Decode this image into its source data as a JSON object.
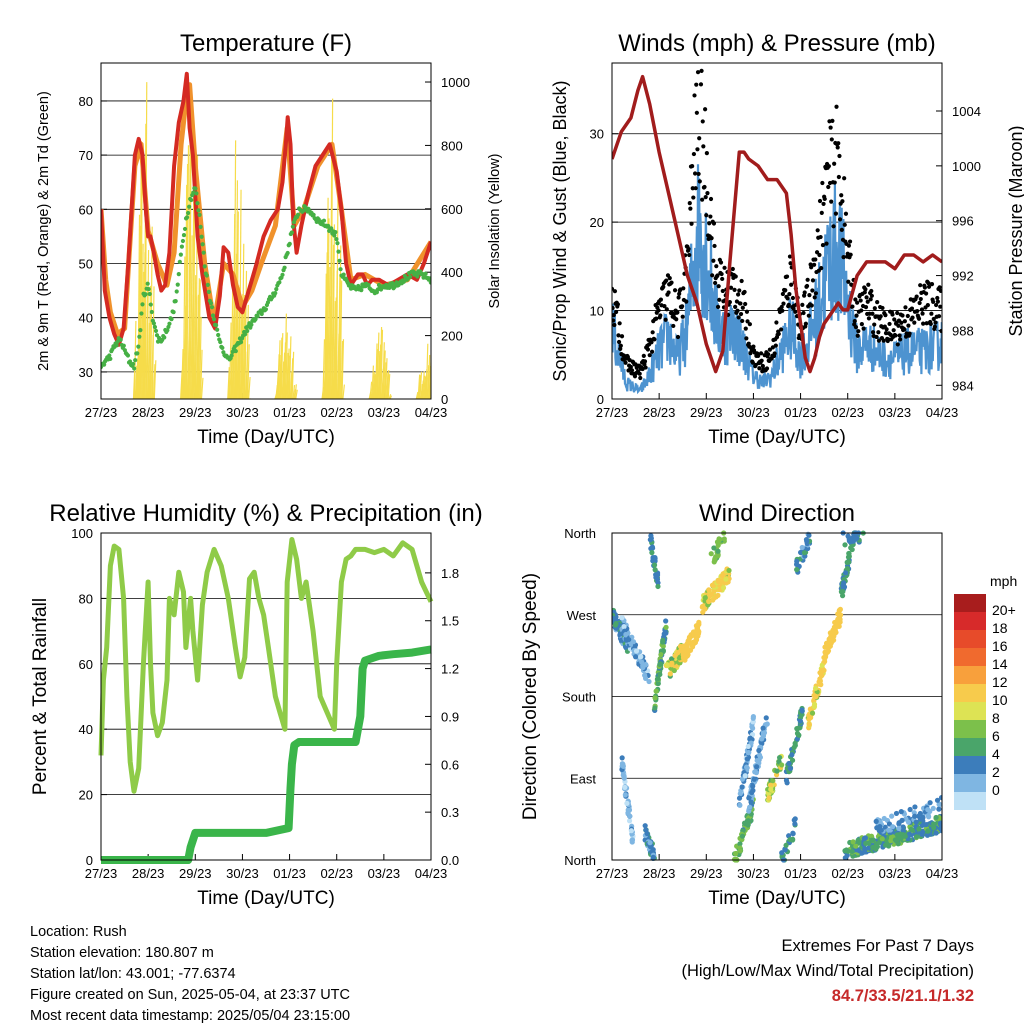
{
  "x_ticks": [
    "27/23",
    "28/23",
    "29/23",
    "30/23",
    "01/23",
    "02/23",
    "03/23",
    "04/23"
  ],
  "x_label": "Time (Day/UTC)",
  "colors": {
    "temp": "#d42a22",
    "temp9": "#f0922c",
    "dew": "#46b045",
    "solar": "#f6dc4a",
    "wind": "#4d93d0",
    "gust": "#000000",
    "pressure": "#a11c1c",
    "rh": "#8fcb48",
    "precip": "#3ab54a",
    "grid": "#000000"
  },
  "chart_data": [
    {
      "type": "line",
      "title": "Temperature (F)",
      "ylabel": "2m & 9m T (Red, Orange) & 2m Td (Green)",
      "y2label": "Solar Insolation (Yellow)",
      "ylim": [
        25,
        87
      ],
      "y2lim": [
        0,
        1060
      ],
      "yticks": [
        30,
        40,
        50,
        60,
        70,
        80
      ],
      "y2ticks": [
        0,
        200,
        400,
        600,
        800,
        1000
      ],
      "x_days": [
        0,
        7
      ],
      "series": [
        {
          "key": "temp",
          "x": [
            0,
            0.08,
            0.18,
            0.28,
            0.38,
            0.48,
            0.58,
            0.65,
            0.72,
            0.8,
            0.88,
            0.95,
            1.0,
            1.05,
            1.12,
            1.2,
            1.28,
            1.36,
            1.45,
            1.55,
            1.65,
            1.75,
            1.82,
            1.88,
            1.95,
            2.05,
            2.15,
            2.3,
            2.42,
            2.52,
            2.6,
            2.7,
            2.8,
            2.9,
            3.0,
            3.1,
            3.2,
            3.3,
            3.45,
            3.6,
            3.75,
            3.85,
            3.92,
            3.96,
            4.02,
            4.08,
            4.15,
            4.25,
            4.4,
            4.55,
            4.7,
            4.85,
            5.0,
            5.1,
            5.2,
            5.3,
            5.45,
            5.55,
            5.65,
            5.75,
            5.9,
            6.1,
            6.3,
            6.5,
            6.7,
            6.85,
            7.0
          ],
          "y": [
            60,
            45,
            40,
            37,
            35,
            38,
            50,
            60,
            70,
            73,
            70,
            60,
            55,
            55,
            52,
            48,
            45,
            46,
            52,
            68,
            76,
            80,
            85,
            75,
            70,
            55,
            48,
            40,
            38,
            44,
            53,
            52,
            46,
            42,
            41,
            44,
            47,
            50,
            55,
            58,
            60,
            65,
            72,
            77,
            72,
            58,
            52,
            57,
            63,
            68,
            70,
            72,
            67,
            60,
            50,
            46,
            48,
            48,
            46,
            47,
            47,
            46,
            47,
            48,
            47,
            50,
            54
          ]
        },
        {
          "key": "temp9",
          "x": [
            0,
            0.1,
            0.2,
            0.35,
            0.5,
            0.6,
            0.72,
            0.85,
            1.0,
            1.2,
            1.4,
            1.55,
            1.7,
            1.8,
            1.88,
            2.0,
            2.2,
            2.4,
            2.6,
            2.8,
            3.0,
            3.2,
            3.4,
            3.7,
            3.95,
            4.1,
            4.3,
            4.6,
            4.9,
            5.1,
            5.3,
            5.6,
            6.0,
            6.5,
            7.0
          ],
          "y": [
            60,
            47,
            41,
            37,
            38,
            52,
            68,
            72,
            56,
            50,
            46,
            52,
            72,
            80,
            83,
            68,
            50,
            39,
            50,
            48,
            42,
            45,
            50,
            57,
            75,
            57,
            60,
            68,
            72,
            60,
            47,
            48,
            46,
            47,
            54
          ]
        },
        {
          "key": "dew",
          "x": [
            0,
            0.1,
            0.2,
            0.3,
            0.4,
            0.5,
            0.6,
            0.7,
            0.8,
            0.9,
            1.0,
            1.1,
            1.2,
            1.3,
            1.4,
            1.5,
            1.6,
            1.7,
            1.8,
            1.9,
            2.0,
            2.1,
            2.2,
            2.3,
            2.5,
            2.7,
            2.9,
            3.1,
            3.3,
            3.5,
            3.7,
            3.85,
            3.95,
            4.05,
            4.2,
            4.4,
            4.6,
            4.8,
            5.0,
            5.1,
            5.25,
            5.4,
            5.6,
            5.8,
            6.0,
            6.2,
            6.4,
            6.6,
            6.8,
            7.0
          ],
          "y": [
            31,
            32,
            33,
            35,
            36,
            34,
            32,
            31,
            35,
            44,
            46,
            40,
            36,
            36,
            38,
            40,
            44,
            52,
            58,
            62,
            64,
            58,
            50,
            44,
            36,
            32,
            35,
            38,
            40,
            42,
            45,
            48,
            52,
            56,
            60,
            60,
            58,
            57,
            55,
            48,
            46,
            45,
            46,
            45,
            46,
            46,
            47,
            48,
            48,
            47
          ]
        }
      ],
      "solar_days": [
        {
          "start": 0.67,
          "peak": 1030
        },
        {
          "start": 1.67,
          "peak": 1000
        },
        {
          "start": 2.67,
          "peak": 1010
        },
        {
          "start": 3.67,
          "peak": 320
        },
        {
          "start": 4.67,
          "peak": 980
        },
        {
          "start": 5.67,
          "peak": 240
        },
        {
          "start": 6.67,
          "peak": 220
        }
      ]
    },
    {
      "type": "line",
      "title": "Winds (mph) & Pressure (mb)",
      "ylabel": "Sonic/Prop Wind & Gust (Blue, Black)",
      "y2label": "Station Pressure (Maroon)",
      "ylim": [
        0,
        38
      ],
      "y2lim": [
        983,
        1007.5
      ],
      "yticks": [
        0,
        10,
        20,
        30
      ],
      "y2ticks": [
        984,
        988,
        992,
        996,
        1000,
        1004
      ],
      "wind_profile": {
        "x": [
          0,
          0.3,
          0.6,
          0.8,
          1.0,
          1.2,
          1.4,
          1.6,
          1.75,
          1.85,
          2.0,
          2.2,
          2.4,
          2.6,
          2.8,
          3.0,
          3.2,
          3.4,
          3.6,
          3.8,
          4.0,
          4.2,
          4.4,
          4.6,
          4.8,
          5.0,
          5.2,
          5.4,
          5.6,
          5.8,
          6.0,
          6.3,
          6.6,
          7.0
        ],
        "y": [
          9,
          2,
          1,
          3,
          6,
          8,
          5,
          9,
          18,
          22,
          18,
          10,
          8,
          9,
          6,
          3,
          2,
          3,
          6,
          9,
          5,
          8,
          12,
          17,
          19,
          12,
          6,
          7,
          6,
          5,
          5,
          6,
          6,
          7
        ]
      },
      "gust_profile": {
        "x": [
          0,
          0.3,
          0.6,
          0.8,
          1.0,
          1.2,
          1.4,
          1.6,
          1.75,
          1.85,
          2.0,
          2.2,
          2.4,
          2.6,
          2.8,
          3.0,
          3.2,
          3.4,
          3.6,
          3.8,
          4.0,
          4.2,
          4.4,
          4.6,
          4.8,
          5.0,
          5.2,
          5.4,
          5.6,
          5.8,
          6.0,
          6.3,
          6.6,
          7.0
        ],
        "y": [
          12,
          4,
          3,
          6,
          10,
          12,
          9,
          15,
          28,
          32,
          26,
          14,
          12,
          13,
          10,
          5,
          4,
          5,
          10,
          14,
          8,
          12,
          18,
          25,
          27,
          16,
          9,
          11,
          9,
          8,
          8,
          9,
          11,
          10
        ]
      },
      "pressure": {
        "x": [
          0,
          0.2,
          0.4,
          0.55,
          0.65,
          0.8,
          1.0,
          1.2,
          1.4,
          1.6,
          1.8,
          2.0,
          2.2,
          2.35,
          2.5,
          2.6,
          2.7,
          2.8,
          2.9,
          3.1,
          3.3,
          3.5,
          3.7,
          3.8,
          3.9,
          4.0,
          4.1,
          4.2,
          4.3,
          4.4,
          4.5,
          4.6,
          4.7,
          4.8,
          4.9,
          5.0,
          5.2,
          5.4,
          5.6,
          5.8,
          6.0,
          6.2,
          6.4,
          6.6,
          6.8,
          7.0
        ],
        "y": [
          1000.5,
          1002.5,
          1003.5,
          1005.5,
          1006.5,
          1004.5,
          1001,
          998,
          995,
          992,
          990,
          987,
          985,
          986.5,
          993,
          997,
          1001,
          1001,
          1000.5,
          1000,
          999,
          999,
          998,
          995,
          991,
          988.5,
          986,
          985,
          986,
          987.5,
          988.5,
          989,
          989.5,
          990,
          989.5,
          989.5,
          992,
          993,
          993,
          993,
          992.5,
          993.5,
          993.5,
          993,
          993.5,
          993
        ]
      }
    },
    {
      "type": "line",
      "title": "Relative Humidity (%) & Precipitation (in)",
      "ylabel": "Percent & Total Rainfall",
      "ylim": [
        0,
        100
      ],
      "y2lim": [
        0,
        2.05
      ],
      "yticks": [
        0,
        20,
        40,
        60,
        80,
        100
      ],
      "y2ticks": [
        "0.0",
        "0.3",
        "0.6",
        "0.9",
        "1.2",
        "1.5",
        "1.8"
      ],
      "series": [
        {
          "key": "rh",
          "x": [
            0,
            0.05,
            0.12,
            0.2,
            0.28,
            0.38,
            0.48,
            0.55,
            0.62,
            0.7,
            0.8,
            0.9,
            1.0,
            1.05,
            1.1,
            1.2,
            1.3,
            1.4,
            1.45,
            1.55,
            1.65,
            1.75,
            1.8,
            1.9,
            1.95,
            2.05,
            2.15,
            2.25,
            2.4,
            2.55,
            2.7,
            2.85,
            2.95,
            3.05,
            3.15,
            3.25,
            3.35,
            3.45,
            3.55,
            3.7,
            3.8,
            3.9,
            3.95,
            4.05,
            4.15,
            4.25,
            4.35,
            4.5,
            4.65,
            4.8,
            4.95,
            5.0,
            5.1,
            5.2,
            5.3,
            5.4,
            5.6,
            5.8,
            6.0,
            6.2,
            6.4,
            6.6,
            6.8,
            6.9,
            7.0
          ],
          "y": [
            32,
            55,
            65,
            90,
            96,
            95,
            80,
            50,
            30,
            21,
            28,
            60,
            85,
            60,
            45,
            38,
            42,
            55,
            80,
            75,
            88,
            82,
            65,
            80,
            70,
            55,
            78,
            88,
            95,
            90,
            80,
            65,
            56,
            62,
            86,
            88,
            80,
            75,
            65,
            50,
            45,
            40,
            85,
            98,
            92,
            80,
            85,
            70,
            50,
            45,
            40,
            60,
            85,
            92,
            93,
            95,
            95,
            94,
            95,
            93,
            97,
            95,
            85,
            82,
            79
          ]
        },
        {
          "key": "precip",
          "x": [
            0,
            0.5,
            1.0,
            1.5,
            1.85,
            1.9,
            2.0,
            2.5,
            3.0,
            3.5,
            3.98,
            4.02,
            4.05,
            4.1,
            4.2,
            4.5,
            5.0,
            5.4,
            5.5,
            5.55,
            5.6,
            5.7,
            5.8,
            5.9,
            6.2,
            6.6,
            7.0
          ],
          "y": [
            0,
            0,
            0,
            0,
            0,
            0.08,
            0.17,
            0.17,
            0.17,
            0.17,
            0.2,
            0.45,
            0.6,
            0.72,
            0.74,
            0.74,
            0.74,
            0.74,
            0.9,
            1.2,
            1.25,
            1.26,
            1.27,
            1.28,
            1.29,
            1.3,
            1.32
          ]
        }
      ]
    },
    {
      "type": "scatter",
      "title": "Wind Direction",
      "ylabel": "Direction (Colored By Speed)",
      "yticks": [
        "North",
        "East",
        "South",
        "West",
        "North"
      ],
      "legend": {
        "title": "mph",
        "labels": [
          "20+",
          "18",
          "16",
          "14",
          "12",
          "10",
          "8",
          "6",
          "4",
          "2",
          "0"
        ],
        "colors": [
          "#a81d1d",
          "#d72a2a",
          "#e74b2a",
          "#f06a2e",
          "#f8a03c",
          "#f7cb4c",
          "#dde354",
          "#7cc04b",
          "#4aa56a",
          "#3c7dbb",
          "#7fb6e2",
          "#bfe1f6"
        ]
      },
      "clusters": [
        {
          "x0": 0.0,
          "x1": 0.35,
          "d0": 270,
          "d1": 235,
          "s0": 2,
          "s1": 6,
          "n": 70
        },
        {
          "x0": 0.2,
          "x1": 0.8,
          "d0": 260,
          "d1": 200,
          "s0": 0,
          "s1": 4,
          "n": 80
        },
        {
          "x0": 0.2,
          "x1": 0.45,
          "d0": 110,
          "d1": 20,
          "s0": 0,
          "s1": 3,
          "n": 50
        },
        {
          "x0": 0.7,
          "x1": 0.9,
          "d0": 30,
          "d1": 5,
          "s0": 2,
          "s1": 5,
          "n": 40
        },
        {
          "x0": 0.9,
          "x1": 1.15,
          "d0": 170,
          "d1": 260,
          "s0": 3,
          "s1": 8,
          "n": 70
        },
        {
          "x0": 0.8,
          "x1": 1.0,
          "d0": 355,
          "d1": 300,
          "s0": 3,
          "s1": 5,
          "n": 30
        },
        {
          "x0": 1.15,
          "x1": 1.5,
          "d0": 205,
          "d1": 230,
          "s0": 6,
          "s1": 12,
          "n": 60
        },
        {
          "x0": 1.5,
          "x1": 1.85,
          "d0": 225,
          "d1": 255,
          "s0": 12,
          "s1": 20,
          "n": 80
        },
        {
          "x0": 1.9,
          "x1": 2.5,
          "d0": 280,
          "d1": 315,
          "s0": 8,
          "s1": 12,
          "n": 90
        },
        {
          "x0": 2.1,
          "x1": 2.4,
          "d0": 330,
          "d1": 358,
          "s0": 6,
          "s1": 8,
          "n": 25
        },
        {
          "x0": 2.6,
          "x1": 3.0,
          "d0": 0,
          "d1": 60,
          "s0": 4,
          "s1": 8,
          "n": 60
        },
        {
          "x0": 2.7,
          "x1": 3.0,
          "d0": 60,
          "d1": 150,
          "s0": 0,
          "s1": 4,
          "n": 60
        },
        {
          "x0": 2.9,
          "x1": 3.3,
          "d0": 60,
          "d1": 160,
          "s0": 1,
          "s1": 4,
          "n": 70
        },
        {
          "x0": 3.3,
          "x1": 3.6,
          "d0": 70,
          "d1": 110,
          "s0": 6,
          "s1": 10,
          "n": 45
        },
        {
          "x0": 3.6,
          "x1": 3.9,
          "d0": 0,
          "d1": 40,
          "s0": 3,
          "s1": 6,
          "n": 25
        },
        {
          "x0": 3.7,
          "x1": 4.05,
          "d0": 90,
          "d1": 165,
          "s0": 3,
          "s1": 6,
          "n": 45
        },
        {
          "x0": 3.9,
          "x1": 4.2,
          "d0": 320,
          "d1": 355,
          "s0": 2,
          "s1": 5,
          "n": 30
        },
        {
          "x0": 4.15,
          "x1": 4.5,
          "d0": 150,
          "d1": 215,
          "s0": 8,
          "s1": 14,
          "n": 55
        },
        {
          "x0": 4.5,
          "x1": 4.85,
          "d0": 225,
          "d1": 270,
          "s0": 12,
          "s1": 18,
          "n": 70
        },
        {
          "x0": 4.85,
          "x1": 5.15,
          "d0": 290,
          "d1": 358,
          "s0": 3,
          "s1": 6,
          "n": 55
        },
        {
          "x0": 4.9,
          "x1": 5.4,
          "d0": 355,
          "d1": 360,
          "s0": 3,
          "s1": 5,
          "n": 20
        },
        {
          "x0": 4.9,
          "x1": 7.0,
          "d0": 10,
          "d1": 40,
          "s0": 3,
          "s1": 7,
          "n": 280
        },
        {
          "x0": 5.6,
          "x1": 7.0,
          "d0": 35,
          "d1": 60,
          "s0": 1,
          "s1": 4,
          "n": 60
        }
      ]
    }
  ],
  "meta": {
    "location": "Location: Rush",
    "elevation": "Station elevation: 180.807 m",
    "latlon": "Station lat/lon: 43.001; -77.6374",
    "created": "Figure created on Sun, 2025-05-04, at 23:37 UTC",
    "timestamp": "Most recent data timestamp: 2025/05/04 23:15:00"
  },
  "extremes": {
    "title": "Extremes For Past 7 Days",
    "subtitle": "(High/Low/Max Wind/Total Precipitation)",
    "values": "84.7/33.5/21.1/1.32"
  }
}
